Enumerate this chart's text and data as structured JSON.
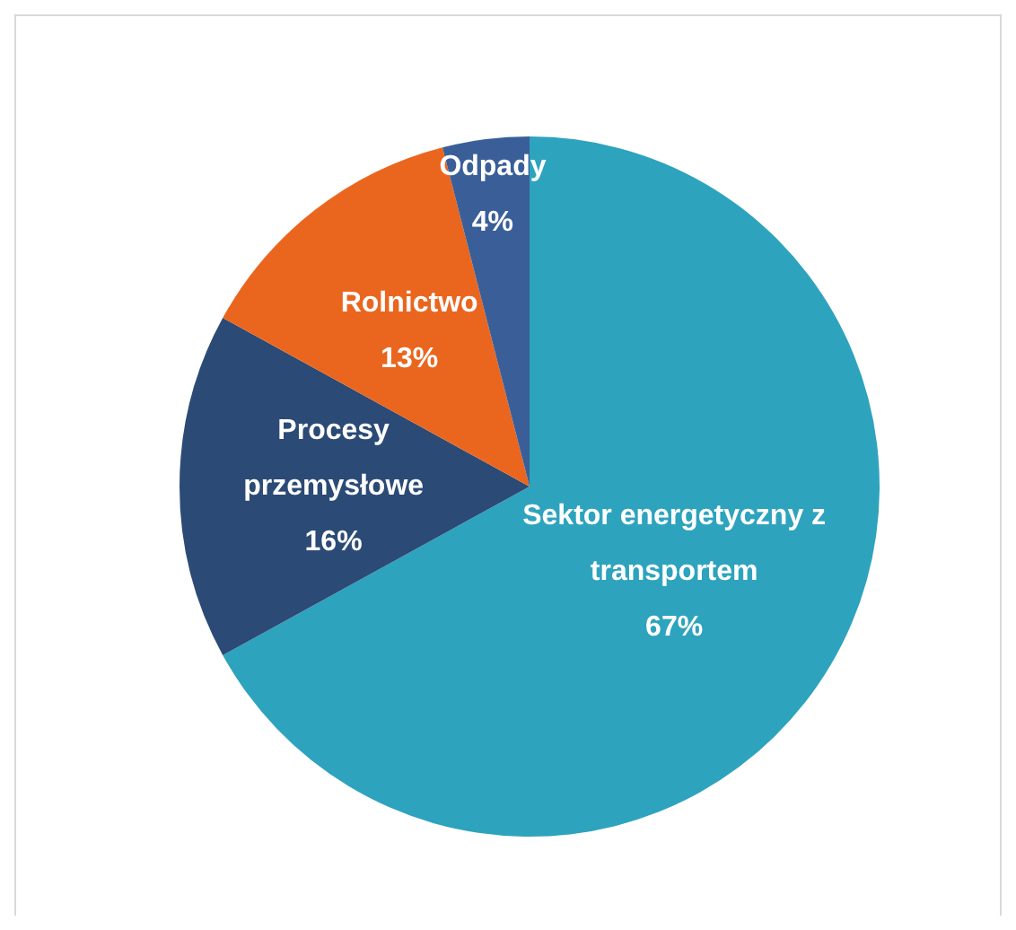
{
  "chart_data": {
    "type": "pie",
    "categories": [
      "Sektor energetyczny z transportem",
      "Procesy przemysłowe",
      "Rolnictwo",
      "Odpady"
    ],
    "values": [
      67,
      16,
      13,
      4
    ],
    "colors": [
      "#2ea3be",
      "#2b4a76",
      "#ea661f",
      "#3a5f98"
    ],
    "value_labels": [
      "67%",
      "16%",
      "13%",
      "4%"
    ],
    "legend": false
  }
}
